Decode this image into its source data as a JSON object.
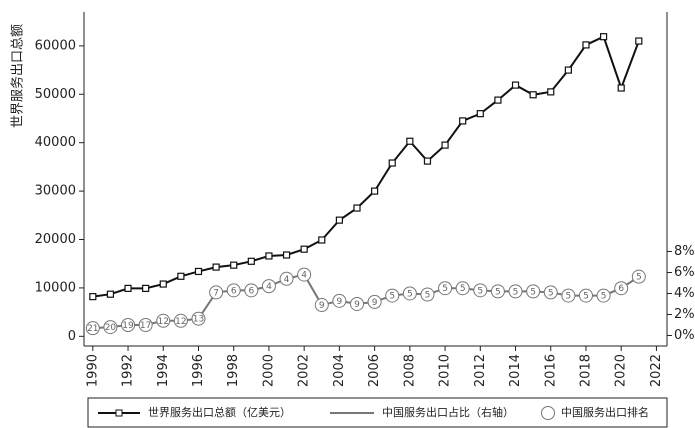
{
  "chart_data": {
    "type": "line",
    "ylabel": "世界服务出口总额",
    "x": [
      1990,
      1991,
      1992,
      1993,
      1994,
      1995,
      1996,
      1997,
      1998,
      1999,
      2000,
      2001,
      2002,
      2003,
      2004,
      2005,
      2006,
      2007,
      2008,
      2009,
      2010,
      2011,
      2012,
      2013,
      2014,
      2015,
      2016,
      2017,
      2018,
      2019,
      2020,
      2021
    ],
    "xlim": [
      1989.5,
      2022.6
    ],
    "xticks": [
      1990,
      1992,
      1994,
      1996,
      1998,
      2000,
      2002,
      2004,
      2006,
      2008,
      2010,
      2012,
      2014,
      2016,
      2018,
      2020,
      2022
    ],
    "ylim": [
      -2000,
      67000
    ],
    "yticks": [
      0,
      10000,
      20000,
      30000,
      40000,
      50000,
      60000
    ],
    "y2lim": [
      -1,
      30.8
    ],
    "y2ticks": [
      {
        "value": 0,
        "label": "0%"
      },
      {
        "value": 2,
        "label": "2%"
      },
      {
        "value": 4,
        "label": "4%"
      },
      {
        "value": 6,
        "label": "6%"
      },
      {
        "value": 8,
        "label": "8%"
      }
    ],
    "series": [
      {
        "name": "世界服务出口总额（亿美元）",
        "color": "#111111",
        "values": [
          8200,
          8700,
          9900,
          9900,
          10800,
          12400,
          13400,
          14300,
          14700,
          15500,
          16600,
          16800,
          18000,
          19900,
          24000,
          26500,
          30000,
          35800,
          40300,
          36200,
          39500,
          44500,
          46000,
          48800,
          51900,
          49900,
          50500,
          55000,
          60200,
          61900,
          51300,
          61000
        ]
      },
      {
        "name": "中国服务出口占比（右轴）",
        "color": "#777777",
        "axis": "y2",
        "values": [
          0.7,
          0.8,
          1.0,
          1.0,
          1.4,
          1.4,
          1.6,
          4.1,
          4.3,
          4.3,
          4.7,
          5.4,
          5.8,
          2.9,
          3.3,
          3.0,
          3.2,
          3.8,
          4.0,
          3.9,
          4.5,
          4.5,
          4.3,
          4.2,
          4.2,
          4.2,
          4.1,
          3.8,
          3.8,
          3.8,
          4.5,
          5.6
        ]
      },
      {
        "name": "中国服务出口排名",
        "color": "#777777",
        "values": [
          21,
          20,
          19,
          17,
          12,
          12,
          13,
          7,
          6,
          6,
          4,
          4,
          4,
          9,
          9,
          9,
          9,
          5,
          5,
          5,
          5,
          5,
          5,
          5,
          5,
          5,
          5,
          5,
          5,
          5,
          6,
          5
        ]
      }
    ]
  }
}
